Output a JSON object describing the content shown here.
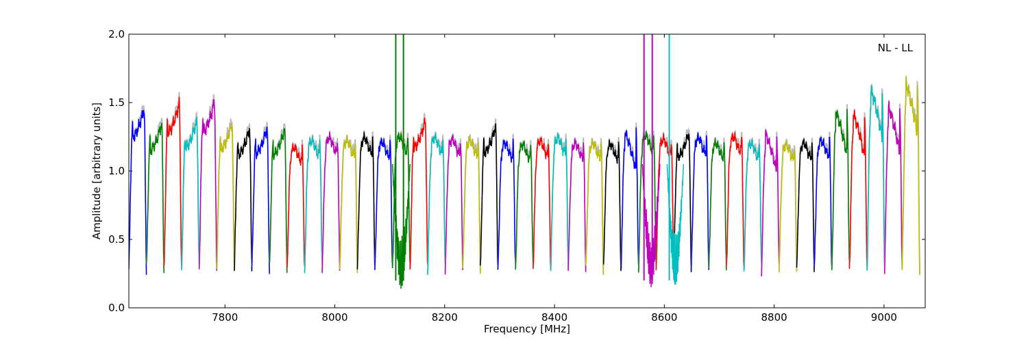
{
  "chart_data": {
    "type": "line",
    "title": "",
    "annotation": "NL - LL",
    "xlabel": "Frequency [MHz]",
    "ylabel": "Amplitude [arbitrary units]",
    "xlim": [
      7625,
      9075
    ],
    "ylim": [
      0.0,
      2.0
    ],
    "xticks": [
      7800,
      8000,
      8200,
      8400,
      8600,
      8800,
      9000
    ],
    "xtick_labels": [
      "7800",
      "8000",
      "8200",
      "8400",
      "8600",
      "8800",
      "9000"
    ],
    "yticks": [
      0.0,
      0.5,
      1.0,
      1.5,
      2.0
    ],
    "ytick_labels": [
      "0.0",
      "0.5",
      "1.0",
      "1.5",
      "2.0"
    ],
    "grid": false,
    "legend": false,
    "raw_color": "#bbbbbb",
    "subband_width_mhz": 32,
    "subbands": [
      {
        "start": 7625,
        "peak": 1.45,
        "shape": "rise",
        "color": "#0000ff"
      },
      {
        "start": 7657,
        "peak": 1.34,
        "shape": "rise",
        "color": "#008000"
      },
      {
        "start": 7689,
        "peak": 1.49,
        "shape": "rise",
        "color": "#ff0000"
      },
      {
        "start": 7721,
        "peak": 1.36,
        "shape": "rise",
        "color": "#00bfbf"
      },
      {
        "start": 7753,
        "peak": 1.5,
        "shape": "rise",
        "color": "#bf00bf"
      },
      {
        "start": 7785,
        "peak": 1.34,
        "shape": "rise",
        "color": "#bfbf00"
      },
      {
        "start": 7817,
        "peak": 1.3,
        "shape": "rise",
        "color": "#000000"
      },
      {
        "start": 7849,
        "peak": 1.31,
        "shape": "rise",
        "color": "#0000ff"
      },
      {
        "start": 7881,
        "peak": 1.3,
        "shape": "rise",
        "color": "#008000"
      },
      {
        "start": 7913,
        "peak": 1.17,
        "shape": "flat",
        "color": "#ff0000"
      },
      {
        "start": 7945,
        "peak": 1.22,
        "shape": "flat",
        "color": "#00bfbf"
      },
      {
        "start": 7977,
        "peak": 1.24,
        "shape": "flat",
        "color": "#bf00bf"
      },
      {
        "start": 8009,
        "peak": 1.22,
        "shape": "flat",
        "color": "#bfbf00"
      },
      {
        "start": 8041,
        "peak": 1.24,
        "shape": "flat",
        "color": "#000000"
      },
      {
        "start": 8073,
        "peak": 1.21,
        "shape": "flat",
        "color": "#0000ff"
      },
      {
        "start": 8105,
        "peak": 1.25,
        "shape": "flat",
        "color": "#008000"
      },
      {
        "start": 8137,
        "peak": 1.36,
        "shape": "rise",
        "color": "#ff0000"
      },
      {
        "start": 8169,
        "peak": 1.24,
        "shape": "flat",
        "color": "#00bfbf"
      },
      {
        "start": 8201,
        "peak": 1.23,
        "shape": "flat",
        "color": "#bf00bf"
      },
      {
        "start": 8233,
        "peak": 1.22,
        "shape": "flat",
        "color": "#bfbf00"
      },
      {
        "start": 8265,
        "peak": 1.32,
        "shape": "rise",
        "color": "#000000"
      },
      {
        "start": 8297,
        "peak": 1.2,
        "shape": "flat",
        "color": "#0000ff"
      },
      {
        "start": 8329,
        "peak": 1.19,
        "shape": "flat",
        "color": "#008000"
      },
      {
        "start": 8361,
        "peak": 1.22,
        "shape": "flat",
        "color": "#ff0000"
      },
      {
        "start": 8393,
        "peak": 1.24,
        "shape": "flat",
        "color": "#00bfbf"
      },
      {
        "start": 8425,
        "peak": 1.2,
        "shape": "flat",
        "color": "#bf00bf"
      },
      {
        "start": 8457,
        "peak": 1.2,
        "shape": "flat",
        "color": "#bfbf00"
      },
      {
        "start": 8489,
        "peak": 1.19,
        "shape": "flat",
        "color": "#000000"
      },
      {
        "start": 8521,
        "peak": 1.28,
        "shape": "fall",
        "color": "#0000ff"
      },
      {
        "start": 8553,
        "peak": 1.26,
        "shape": "flat",
        "color": "#008000"
      },
      {
        "start": 8585,
        "peak": 1.23,
        "shape": "flat",
        "color": "#ff0000"
      },
      {
        "start": 8617,
        "peak": 1.28,
        "shape": "rise",
        "color": "#000000"
      },
      {
        "start": 8649,
        "peak": 1.24,
        "shape": "flat",
        "color": "#0000ff"
      },
      {
        "start": 8681,
        "peak": 1.2,
        "shape": "flat",
        "color": "#008000"
      },
      {
        "start": 8713,
        "peak": 1.25,
        "shape": "flat",
        "color": "#ff0000"
      },
      {
        "start": 8745,
        "peak": 1.2,
        "shape": "flat",
        "color": "#00bfbf"
      },
      {
        "start": 8777,
        "peak": 1.27,
        "shape": "fall",
        "color": "#bf00bf"
      },
      {
        "start": 8809,
        "peak": 1.19,
        "shape": "flat",
        "color": "#bfbf00"
      },
      {
        "start": 8841,
        "peak": 1.2,
        "shape": "flat",
        "color": "#000000"
      },
      {
        "start": 8873,
        "peak": 1.22,
        "shape": "flat",
        "color": "#0000ff"
      },
      {
        "start": 8905,
        "peak": 1.43,
        "shape": "fall",
        "color": "#008000"
      },
      {
        "start": 8937,
        "peak": 1.41,
        "shape": "fall",
        "color": "#ff0000"
      },
      {
        "start": 8969,
        "peak": 1.59,
        "shape": "fall",
        "color": "#00bfbf"
      },
      {
        "start": 9001,
        "peak": 1.46,
        "shape": "fall",
        "color": "#bf00bf"
      },
      {
        "start": 9033,
        "peak": 1.63,
        "shape": "fall",
        "color": "#bfbf00"
      }
    ],
    "rfi_spikes": [
      {
        "x": 8111,
        "color": "#008000"
      },
      {
        "x": 8125,
        "color": "#008000"
      },
      {
        "x": 8563,
        "color": "#bf00bf"
      },
      {
        "x": 8578,
        "color": "#bf00bf"
      },
      {
        "x": 8609,
        "color": "#00bfbf"
      }
    ],
    "noisy_regions": [
      {
        "from": 8105,
        "to": 8137,
        "color": "#008000",
        "min": 0.13
      },
      {
        "from": 8560,
        "to": 8592,
        "color": "#bf00bf",
        "min": 0.15
      },
      {
        "from": 8605,
        "to": 8635,
        "color": "#00bfbf",
        "min": 0.15
      }
    ]
  }
}
